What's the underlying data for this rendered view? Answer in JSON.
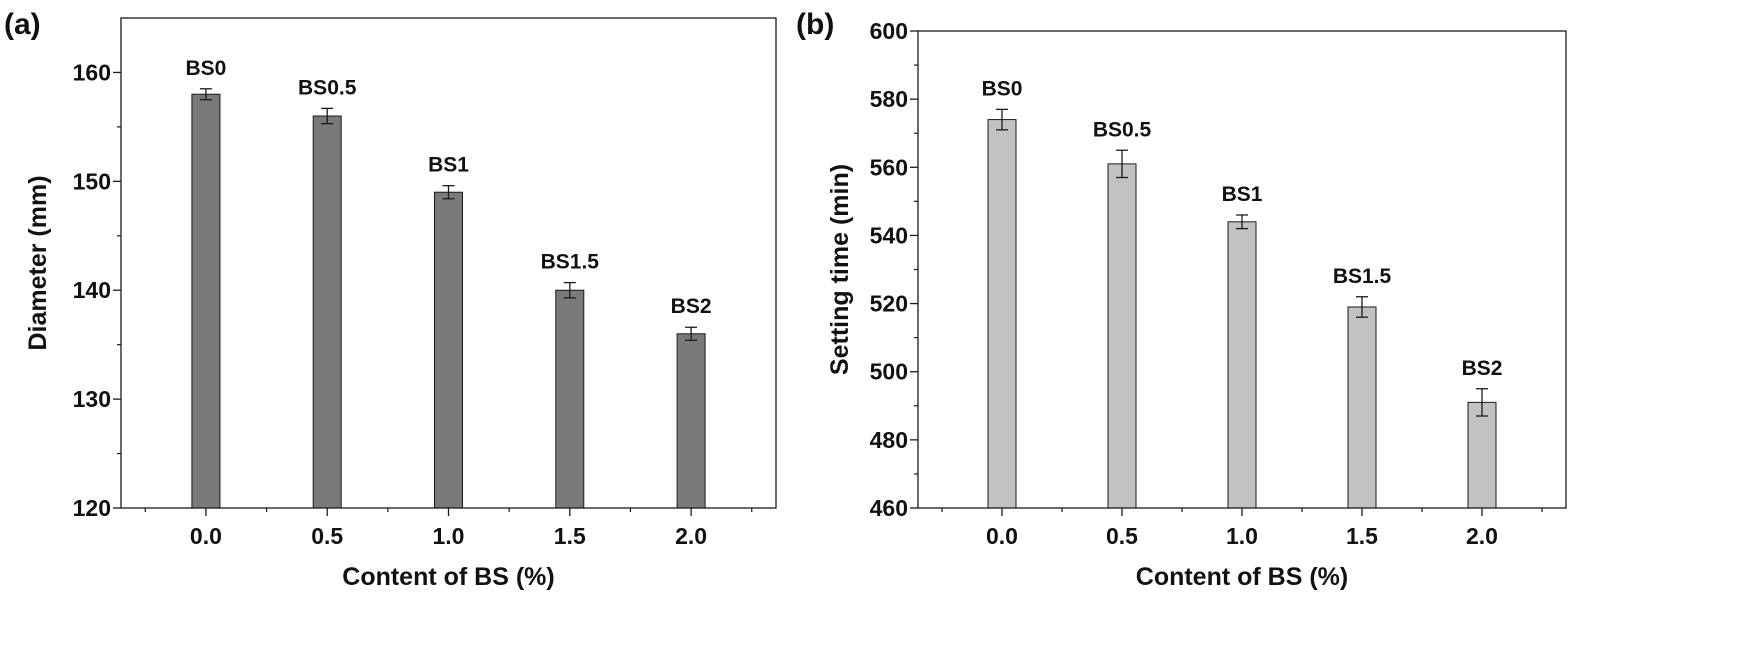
{
  "chart_data": [
    {
      "id": "a",
      "panel_label": "(a)",
      "type": "bar",
      "x": [
        0.0,
        0.5,
        1.0,
        1.5,
        2.0
      ],
      "x_tick_labels": [
        "0.0",
        "0.5",
        "1.0",
        "1.5",
        "2.0"
      ],
      "values": [
        158,
        156,
        149,
        140,
        136
      ],
      "errors": [
        0.5,
        0.7,
        0.6,
        0.7,
        0.6
      ],
      "bar_labels": [
        "BS0",
        "BS0.5",
        "BS1",
        "BS1.5",
        "BS2"
      ],
      "xlabel": "Content of BS (%)",
      "ylabel": "Diameter (mm)",
      "xlim": [
        -0.35,
        2.35
      ],
      "ylim": [
        120,
        165
      ],
      "y_ticks": [
        120,
        130,
        140,
        150,
        160
      ],
      "bar_color": "#7a7a7a",
      "grid": false
    },
    {
      "id": "b",
      "panel_label": "(b)",
      "type": "bar",
      "x": [
        0.0,
        0.5,
        1.0,
        1.5,
        2.0
      ],
      "x_tick_labels": [
        "0.0",
        "0.5",
        "1.0",
        "1.5",
        "2.0"
      ],
      "values": [
        574,
        561,
        544,
        519,
        491
      ],
      "errors": [
        3,
        4,
        2,
        3,
        4
      ],
      "bar_labels": [
        "BS0",
        "BS0.5",
        "BS1",
        "BS1.5",
        "BS2"
      ],
      "xlabel": "Content of BS (%)",
      "ylabel": "Setting time (min)",
      "xlim": [
        -0.35,
        2.35
      ],
      "ylim": [
        460,
        600
      ],
      "y_ticks": [
        460,
        480,
        500,
        520,
        540,
        560,
        580,
        600
      ],
      "bar_color": "#c2c2c2",
      "grid": false
    }
  ]
}
